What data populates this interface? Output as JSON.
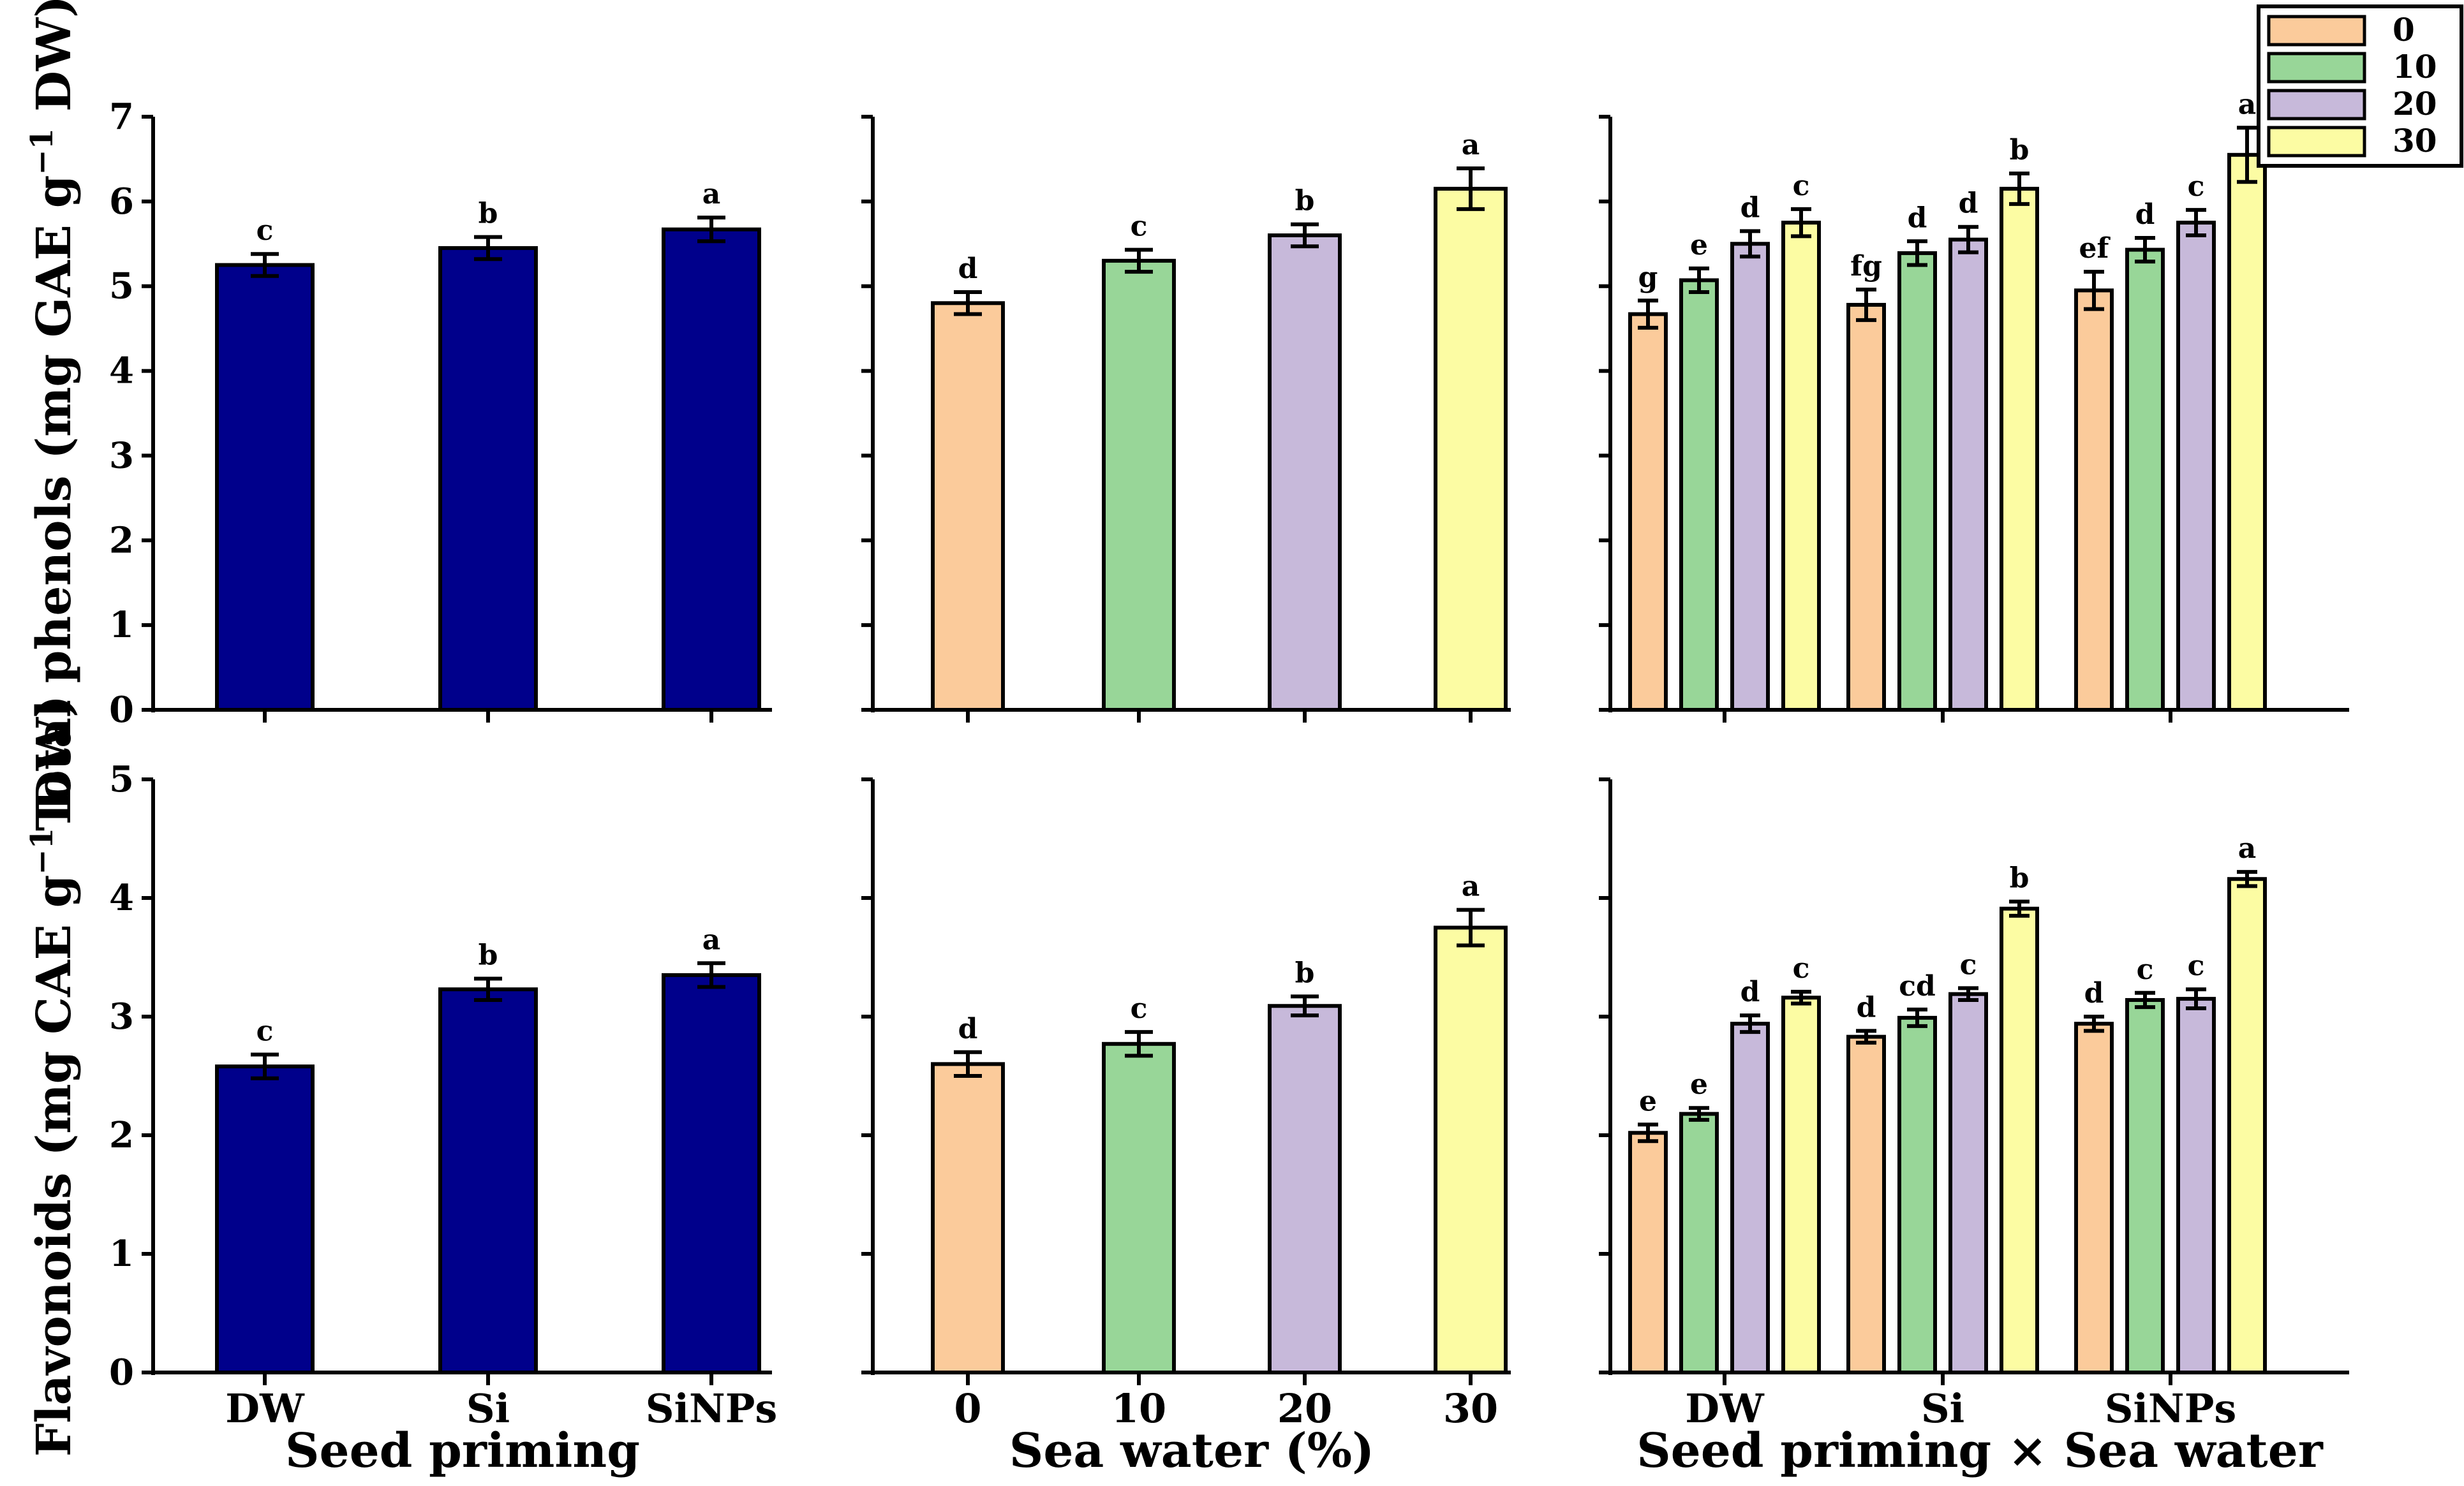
{
  "legend": {
    "title": "Sea water (%)",
    "entries": [
      {
        "label": "0",
        "color": "#FBCB9B"
      },
      {
        "label": "10",
        "color": "#98D698"
      },
      {
        "label": "20",
        "color": "#C7B9DA"
      },
      {
        "label": "30",
        "color": "#FCFCA3"
      }
    ]
  },
  "chart_data": [
    {
      "type": "bar",
      "row": 0,
      "col": 0,
      "ylabel_main": "Total phenols (mg GAE g",
      "ylabel_sup": "−1",
      "ylabel_tail": " DW)",
      "xlabel": "",
      "ylim": [
        0,
        7
      ],
      "yticks": [
        "0",
        "1",
        "2",
        "3",
        "4",
        "5",
        "6",
        "7"
      ],
      "categories": [
        "DW",
        "Si",
        "SiNPs"
      ],
      "series": [
        {
          "name": "Seed priming",
          "color": "#00008B",
          "values": [
            5.25,
            5.45,
            5.67
          ],
          "errors": [
            0.13,
            0.13,
            0.14
          ],
          "letters": [
            "c",
            "b",
            "a"
          ]
        }
      ]
    },
    {
      "type": "bar",
      "row": 0,
      "col": 1,
      "xlabel": "",
      "ylim": [
        0,
        7
      ],
      "categories": [
        "0",
        "10",
        "20",
        "30"
      ],
      "series": [
        {
          "name": "Sea water",
          "colors": [
            "#FBCB9B",
            "#98D698",
            "#C7B9DA",
            "#FCFCA3"
          ],
          "values": [
            4.8,
            5.3,
            5.6,
            6.15
          ],
          "errors": [
            0.13,
            0.13,
            0.13,
            0.24
          ],
          "letters": [
            "d",
            "c",
            "b",
            "a"
          ]
        }
      ]
    },
    {
      "type": "bar",
      "row": 0,
      "col": 2,
      "xlabel": "",
      "ylim": [
        0,
        7
      ],
      "categories": [
        "DW",
        "Si",
        "SiNPs"
      ],
      "series": [
        {
          "name": "0",
          "color": "#FBCB9B",
          "values": [
            4.67,
            4.78,
            4.95
          ],
          "errors": [
            0.16,
            0.18,
            0.22
          ],
          "letters": [
            "g",
            "fg",
            "ef"
          ]
        },
        {
          "name": "10",
          "color": "#98D698",
          "values": [
            5.07,
            5.39,
            5.43
          ],
          "errors": [
            0.14,
            0.14,
            0.14
          ],
          "letters": [
            "e",
            "d",
            "d"
          ]
        },
        {
          "name": "20",
          "color": "#C7B9DA",
          "values": [
            5.5,
            5.55,
            5.75
          ],
          "errors": [
            0.15,
            0.15,
            0.15
          ],
          "letters": [
            "d",
            "d",
            "c"
          ]
        },
        {
          "name": "30",
          "color": "#FCFCA3",
          "values": [
            5.75,
            6.15,
            6.55
          ],
          "errors": [
            0.16,
            0.18,
            0.32
          ],
          "letters": [
            "c",
            "b",
            "a"
          ]
        }
      ]
    },
    {
      "type": "bar",
      "row": 1,
      "col": 0,
      "ylabel_main": "Flavonoids (mg CAE g",
      "ylabel_sup": "−1",
      "ylabel_tail": " DW)",
      "xlabel": "Seed priming",
      "ylim": [
        0,
        5
      ],
      "yticks": [
        "0",
        "1",
        "2",
        "3",
        "4",
        "5"
      ],
      "categories": [
        "DW",
        "Si",
        "SiNPs"
      ],
      "series": [
        {
          "name": "Seed priming",
          "color": "#00008B",
          "values": [
            2.58,
            3.23,
            3.35
          ],
          "errors": [
            0.1,
            0.09,
            0.1
          ],
          "letters": [
            "c",
            "b",
            "a"
          ]
        }
      ]
    },
    {
      "type": "bar",
      "row": 1,
      "col": 1,
      "xlabel": "Sea water (%)",
      "ylim": [
        0,
        5
      ],
      "categories": [
        "0",
        "10",
        "20",
        "30"
      ],
      "series": [
        {
          "name": "Sea water",
          "colors": [
            "#FBCB9B",
            "#98D698",
            "#C7B9DA",
            "#FCFCA3"
          ],
          "values": [
            2.6,
            2.77,
            3.09,
            3.75
          ],
          "errors": [
            0.1,
            0.1,
            0.08,
            0.15
          ],
          "letters": [
            "d",
            "c",
            "b",
            "a"
          ]
        }
      ]
    },
    {
      "type": "bar",
      "row": 1,
      "col": 2,
      "xlabel": "Seed priming × Sea water",
      "ylim": [
        0,
        5
      ],
      "categories": [
        "DW",
        "Si",
        "SiNPs"
      ],
      "series": [
        {
          "name": "0",
          "color": "#FBCB9B",
          "values": [
            2.02,
            2.83,
            2.94
          ],
          "errors": [
            0.07,
            0.05,
            0.06
          ],
          "letters": [
            "e",
            "d",
            "d"
          ]
        },
        {
          "name": "10",
          "color": "#98D698",
          "values": [
            2.18,
            2.99,
            3.14
          ],
          "errors": [
            0.05,
            0.07,
            0.06
          ],
          "letters": [
            "e",
            "cd",
            "c"
          ]
        },
        {
          "name": "20",
          "color": "#C7B9DA",
          "values": [
            2.94,
            3.19,
            3.15
          ],
          "errors": [
            0.07,
            0.05,
            0.08
          ],
          "letters": [
            "d",
            "c",
            "c"
          ]
        },
        {
          "name": "30",
          "color": "#FCFCA3",
          "values": [
            3.16,
            3.91,
            4.16
          ],
          "errors": [
            0.05,
            0.06,
            0.06
          ],
          "letters": [
            "c",
            "b",
            "a"
          ]
        }
      ]
    }
  ]
}
